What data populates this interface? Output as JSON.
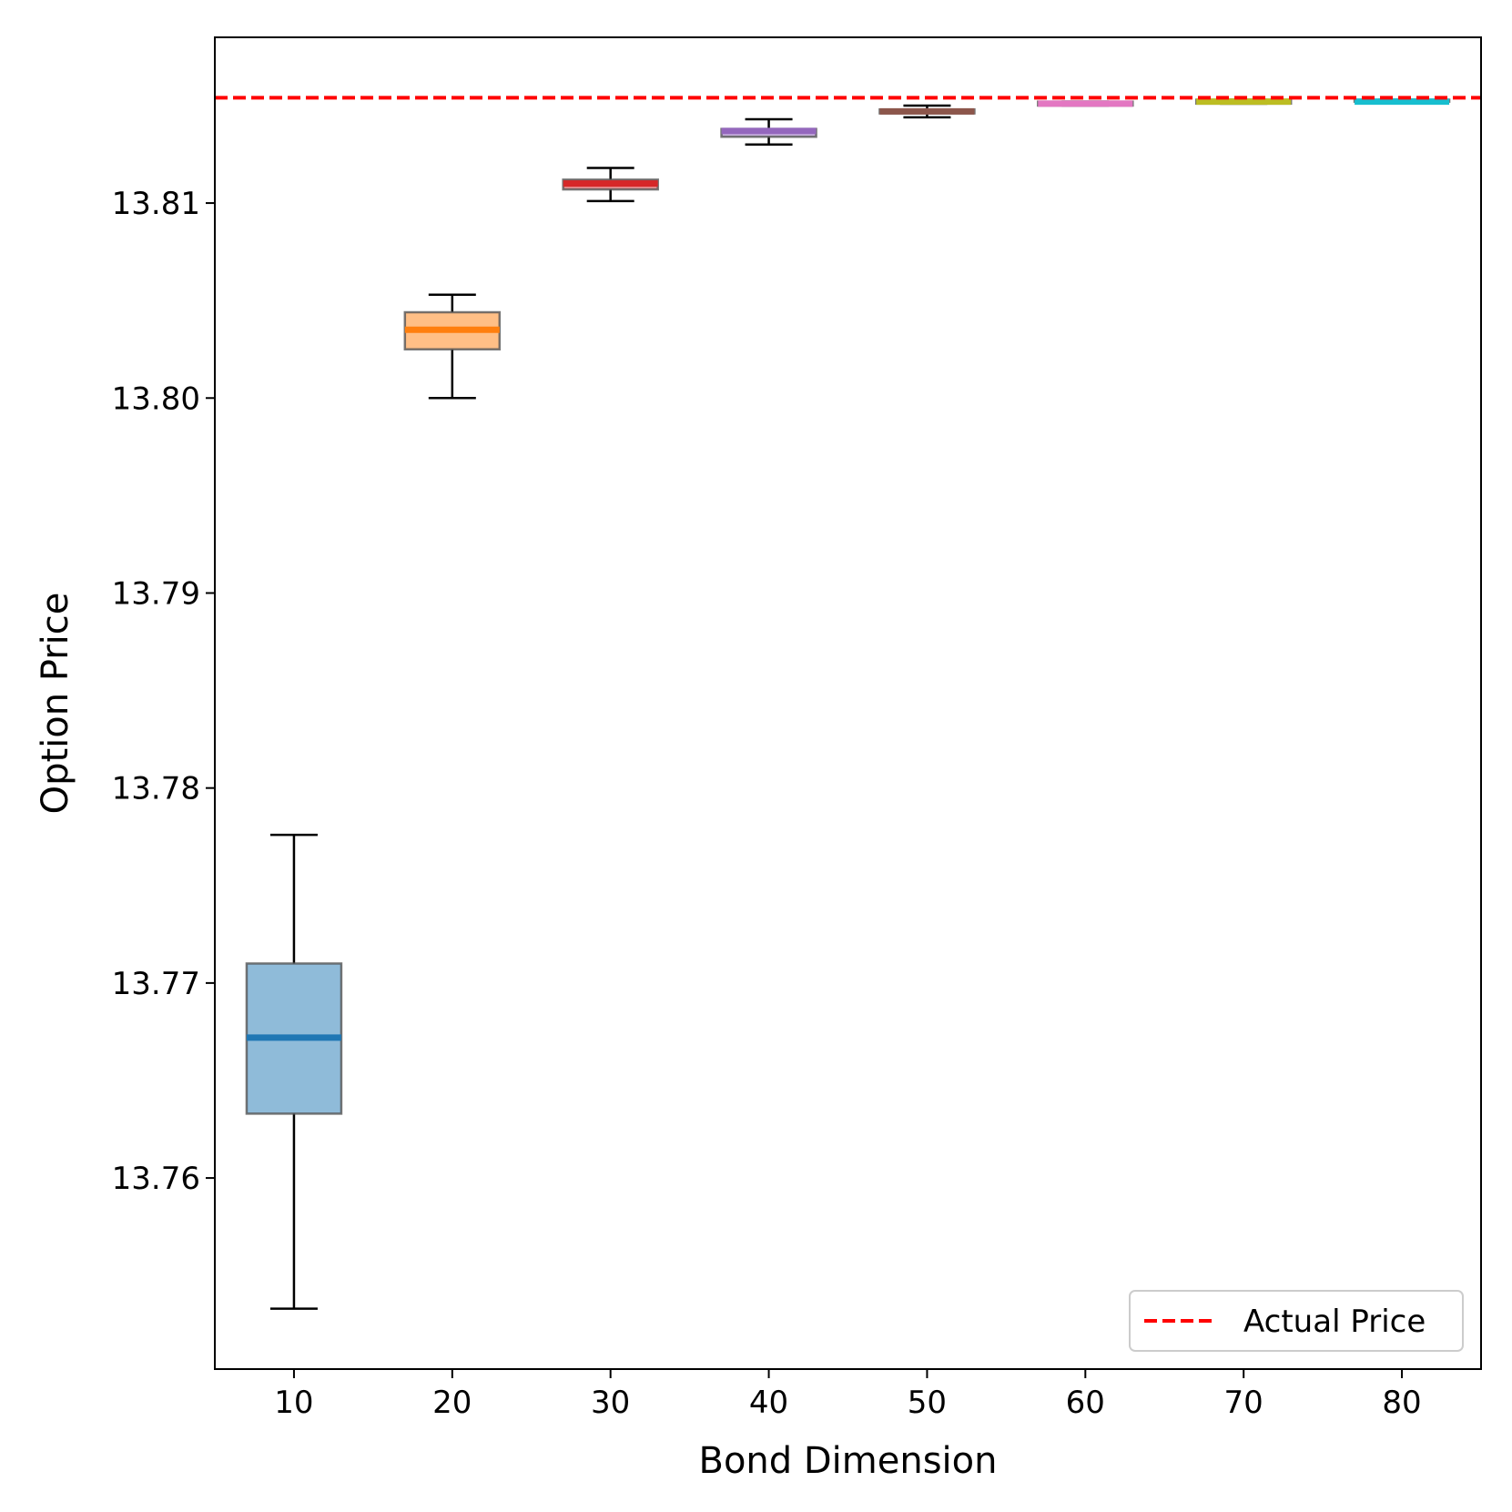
{
  "chart_data": {
    "type": "boxplot",
    "title": "",
    "xlabel": "Bond Dimension",
    "ylabel": "Option Price",
    "categories": [
      "10",
      "20",
      "30",
      "40",
      "50",
      "60",
      "70",
      "80"
    ],
    "x_values": [
      10,
      20,
      30,
      40,
      50,
      60,
      70,
      80
    ],
    "xlim": [
      5,
      85
    ],
    "ylim": [
      13.7502,
      13.8185
    ],
    "yticks": [
      13.76,
      13.77,
      13.78,
      13.79,
      13.8,
      13.81
    ],
    "ytick_labels": [
      "13.76",
      "13.77",
      "13.78",
      "13.79",
      "13.80",
      "13.81"
    ],
    "boxes": [
      {
        "x": 10,
        "whisker_low": 13.7533,
        "q1": 13.7633,
        "median": 13.7672,
        "q3": 13.771,
        "whisker_high": 13.7776,
        "color": "#1f77b4"
      },
      {
        "x": 20,
        "whisker_low": 13.8,
        "q1": 13.8025,
        "median": 13.8035,
        "q3": 13.8044,
        "whisker_high": 13.8053,
        "color": "#ff7f0e"
      },
      {
        "x": 30,
        "whisker_low": 13.8101,
        "q1": 13.8107,
        "median": 13.811,
        "q3": 13.8112,
        "whisker_high": 13.8118,
        "color": "#d62728"
      },
      {
        "x": 40,
        "whisker_low": 13.813,
        "q1": 13.8134,
        "median": 13.8137,
        "q3": 13.8138,
        "whisker_high": 13.8143,
        "color": "#9467bd"
      },
      {
        "x": 50,
        "whisker_low": 13.8144,
        "q1": 13.8146,
        "median": 13.8147,
        "q3": 13.8148,
        "whisker_high": 13.815,
        "color": "#8c564b"
      },
      {
        "x": 60,
        "whisker_low": 13.815,
        "q1": 13.815,
        "median": 13.8151,
        "q3": 13.8152,
        "whisker_high": 13.8152,
        "color": "#e377c2"
      },
      {
        "x": 70,
        "whisker_low": 13.8151,
        "q1": 13.8151,
        "median": 13.8152,
        "q3": 13.8153,
        "whisker_high": 13.8153,
        "color": "#bcbd22"
      },
      {
        "x": 80,
        "whisker_low": 13.8152,
        "q1": 13.8152,
        "median": 13.8152,
        "q3": 13.8153,
        "whisker_high": 13.8153,
        "color": "#17becf"
      }
    ],
    "reference_line": {
      "label": "Actual Price",
      "value": 13.8154,
      "color": "#ff0000",
      "style": "dashed"
    },
    "legend": {
      "position": "bottom-right",
      "entries": [
        "Actual Price"
      ]
    },
    "grid": false
  }
}
